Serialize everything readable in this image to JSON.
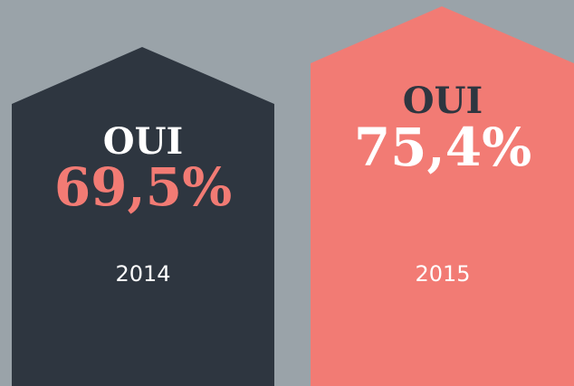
{
  "panels": [
    {
      "label": "OUI",
      "value": "69,5%",
      "year": "2014"
    },
    {
      "label": "OUI",
      "value": "75,4%",
      "year": "2015"
    }
  ]
}
